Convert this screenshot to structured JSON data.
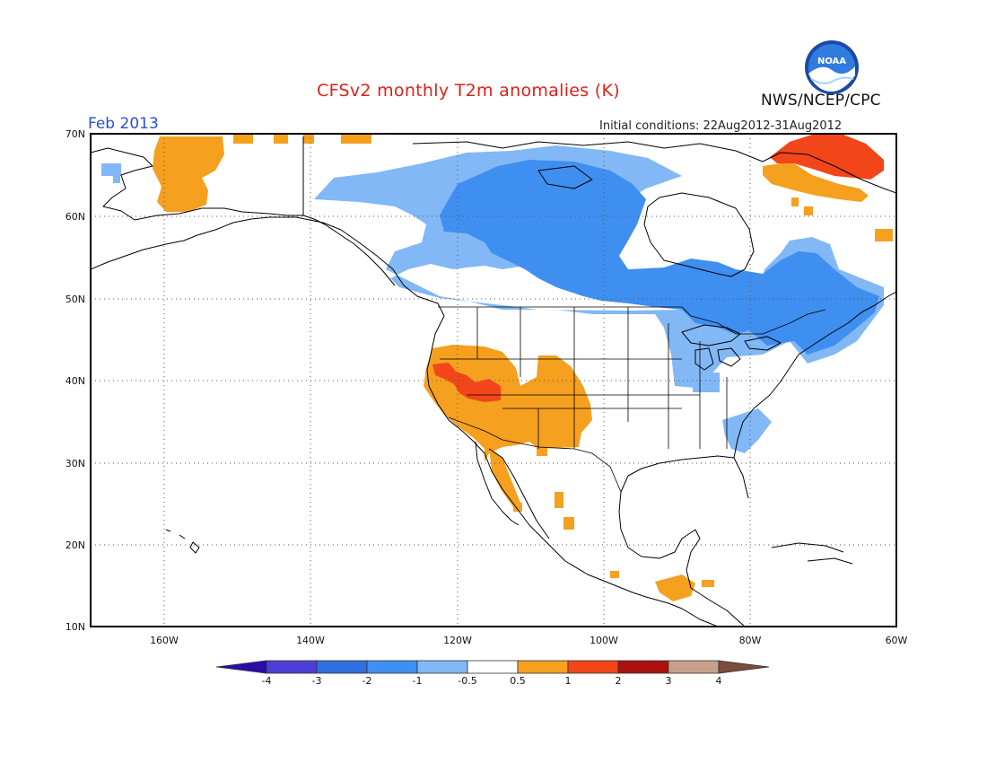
{
  "title": "CFSv2 monthly T2m anomalies (K)",
  "valid_month": "Feb 2013",
  "initial_conditions": "Initial conditions: 22Aug2012-31Aug2012",
  "organization": "NWS/NCEP/CPC",
  "logo_text": "NOAA",
  "map": {
    "lat_labels": [
      "70N",
      "60N",
      "50N",
      "40N",
      "30N",
      "20N",
      "10N"
    ],
    "lon_labels": [
      "160W",
      "140W",
      "120W",
      "100W",
      "80W",
      "60W"
    ],
    "lat_range": [
      10,
      70
    ],
    "lon_range": [
      -170,
      -60
    ],
    "grid": "dotted",
    "anomaly_regions": [
      {
        "region": "Canada (south-central & east)",
        "category": "-2 to -1"
      },
      {
        "region": "Northern Canada / Yukon / Great Lakes fringe",
        "category": "-1 to -0.5"
      },
      {
        "region": "Southeast US / Carolinas",
        "category": "-1 to -0.5"
      },
      {
        "region": "US Southwest / Great Basin",
        "category": "0.5 to 1"
      },
      {
        "region": "Nevada / California interior",
        "category": "1 to 2"
      },
      {
        "region": "Western Alaska",
        "category": "0.5 to 1"
      },
      {
        "region": "Baffin Island / northeast Canada",
        "category": "1 to 2"
      },
      {
        "region": "Central America",
        "category": "0.5 to 1"
      }
    ]
  },
  "colorbar": {
    "ticks": [
      "-4",
      "-3",
      "-2",
      "-1",
      "-0.5",
      "0.5",
      "1",
      "2",
      "3",
      "4"
    ],
    "colors": [
      "#2b0ca8",
      "#4b3fd6",
      "#2f6fe0",
      "#3f8ff0",
      "#82b8f5",
      "#ffffff",
      "#f5a01f",
      "#f2461a",
      "#a8120f",
      "#c7a08d",
      "#7a4c3c"
    ]
  }
}
